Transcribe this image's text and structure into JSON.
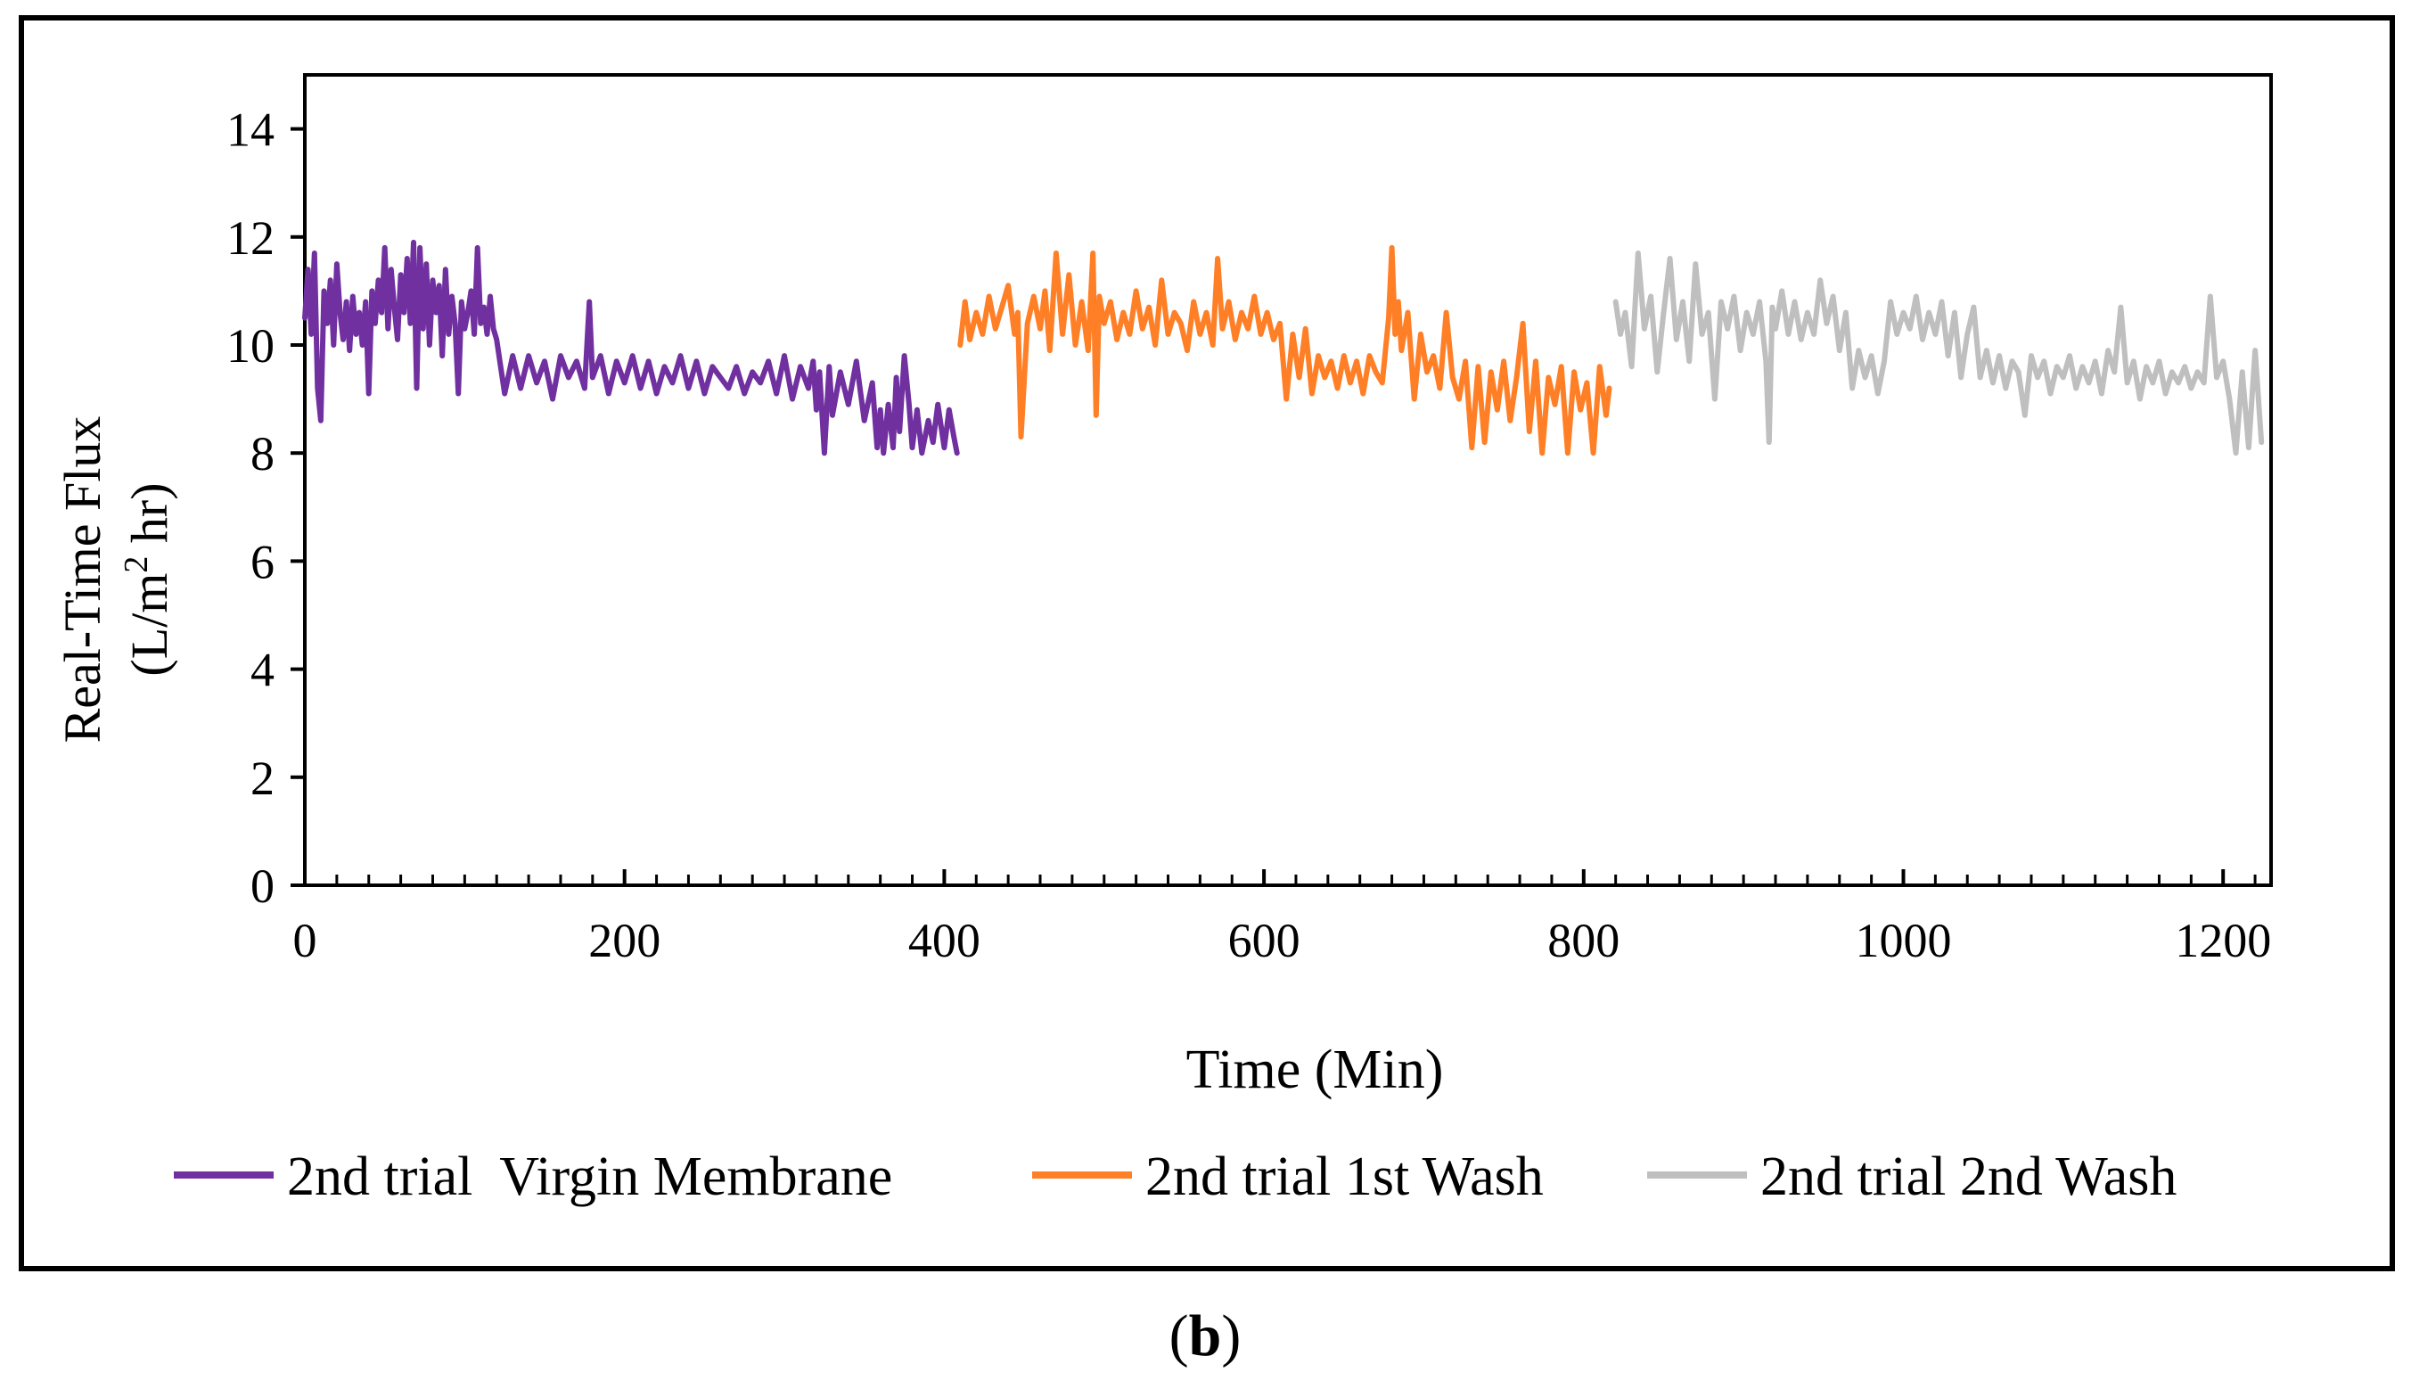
{
  "figure_label": "b",
  "colors": {
    "virgin": "#7030A0",
    "wash1": "#FF7F27",
    "wash2": "#BFBFBF",
    "axis": "#000000",
    "frame": "#000000"
  },
  "chart_data": {
    "type": "line",
    "title": "",
    "xlabel": "Time (Min)",
    "ylabel_line1": "Real-Time Flux",
    "ylabel_line2_prefix": "(L/m",
    "ylabel_line2_sup": "2",
    "ylabel_line2_suffix": " hr)",
    "xlim": [
      0,
      1230
    ],
    "ylim": [
      0,
      15
    ],
    "x_ticks": [
      0,
      200,
      400,
      600,
      800,
      1000,
      1200
    ],
    "y_ticks": [
      0,
      2,
      4,
      6,
      8,
      10,
      12,
      14
    ],
    "x_minor_step": 20,
    "grid": false,
    "legend_position": "bottom",
    "series": [
      {
        "name": "2nd trial  Virgin Membrane",
        "color_key": "virgin",
        "x": [
          0,
          2,
          4,
          6,
          8,
          10,
          12,
          14,
          16,
          18,
          20,
          22,
          24,
          26,
          28,
          30,
          32,
          34,
          36,
          38,
          40,
          42,
          44,
          46,
          48,
          50,
          52,
          54,
          56,
          58,
          60,
          62,
          64,
          66,
          68,
          70,
          72,
          74,
          76,
          78,
          80,
          82,
          84,
          86,
          88,
          90,
          92,
          94,
          96,
          98,
          100,
          102,
          104,
          106,
          108,
          110,
          112,
          114,
          116,
          118,
          120,
          125,
          130,
          135,
          140,
          145,
          150,
          155,
          160,
          165,
          170,
          175,
          178,
          180,
          185,
          190,
          195,
          200,
          205,
          210,
          215,
          220,
          225,
          230,
          235,
          240,
          245,
          250,
          255,
          260,
          265,
          270,
          275,
          280,
          285,
          290,
          295,
          300,
          305,
          310,
          315,
          318,
          320,
          322,
          325,
          328,
          330,
          335,
          340,
          345,
          350,
          355,
          358,
          360,
          362,
          365,
          368,
          370,
          372,
          375,
          378,
          380,
          383,
          386,
          390,
          393,
          396,
          400,
          403,
          406,
          408
        ],
        "y": [
          10.5,
          11.4,
          10.2,
          11.7,
          9.2,
          8.6,
          11.0,
          10.4,
          11.2,
          10.0,
          11.5,
          10.6,
          10.1,
          10.8,
          9.9,
          10.9,
          10.2,
          10.6,
          10.0,
          10.8,
          9.1,
          11.0,
          10.4,
          11.2,
          10.6,
          11.8,
          10.3,
          11.4,
          10.7,
          10.1,
          11.3,
          10.6,
          11.6,
          10.4,
          11.9,
          9.2,
          11.8,
          10.3,
          11.5,
          10.0,
          11.2,
          10.6,
          11.1,
          9.8,
          11.4,
          10.2,
          10.9,
          10.4,
          9.1,
          10.8,
          10.3,
          10.6,
          11.0,
          10.2,
          11.8,
          10.4,
          10.7,
          10.2,
          10.9,
          10.3,
          10.1,
          9.1,
          9.8,
          9.2,
          9.8,
          9.3,
          9.7,
          9.0,
          9.8,
          9.4,
          9.7,
          9.2,
          10.8,
          9.4,
          9.8,
          9.1,
          9.7,
          9.3,
          9.8,
          9.2,
          9.7,
          9.1,
          9.6,
          9.3,
          9.8,
          9.2,
          9.7,
          9.1,
          9.6,
          9.4,
          9.2,
          9.6,
          9.1,
          9.5,
          9.3,
          9.7,
          9.1,
          9.8,
          9.0,
          9.6,
          9.2,
          9.7,
          8.8,
          9.5,
          8.0,
          9.6,
          8.7,
          9.5,
          8.9,
          9.7,
          8.6,
          9.3,
          8.1,
          8.8,
          8.0,
          8.9,
          8.1,
          9.4,
          8.4,
          9.8,
          8.9,
          8.1,
          8.8,
          8.0,
          8.6,
          8.2,
          8.9,
          8.1,
          8.8,
          8.3,
          8.0
        ]
      },
      {
        "name": "2nd trial 1st Wash",
        "color_key": "wash1",
        "x": [
          410,
          413,
          416,
          420,
          424,
          428,
          432,
          436,
          440,
          444,
          446,
          448,
          452,
          456,
          460,
          463,
          466,
          470,
          474,
          478,
          482,
          486,
          490,
          493,
          495,
          497,
          500,
          504,
          508,
          512,
          516,
          520,
          524,
          528,
          532,
          536,
          540,
          544,
          548,
          552,
          556,
          560,
          564,
          568,
          571,
          574,
          578,
          582,
          586,
          590,
          594,
          598,
          602,
          606,
          610,
          614,
          618,
          622,
          626,
          630,
          634,
          638,
          642,
          646,
          650,
          654,
          658,
          662,
          666,
          670,
          674,
          678,
          680,
          682,
          684,
          686,
          690,
          694,
          698,
          702,
          706,
          710,
          714,
          718,
          722,
          726,
          730,
          734,
          738,
          742,
          746,
          750,
          754,
          758,
          762,
          766,
          770,
          774,
          778,
          782,
          786,
          790,
          794,
          798,
          802,
          806,
          810,
          814,
          816
        ],
        "y": [
          10.0,
          10.8,
          10.1,
          10.6,
          10.2,
          10.9,
          10.3,
          10.7,
          11.1,
          10.2,
          10.6,
          8.3,
          10.4,
          10.9,
          10.3,
          11.0,
          9.9,
          11.7,
          10.2,
          11.3,
          10.0,
          10.8,
          9.9,
          11.7,
          8.7,
          10.9,
          10.4,
          10.8,
          10.1,
          10.6,
          10.2,
          11.0,
          10.3,
          10.7,
          10.0,
          11.2,
          10.2,
          10.6,
          10.4,
          9.9,
          10.8,
          10.2,
          10.6,
          10.0,
          11.6,
          10.3,
          10.8,
          10.1,
          10.6,
          10.3,
          10.9,
          10.2,
          10.6,
          10.1,
          10.4,
          9.0,
          10.2,
          9.4,
          10.3,
          9.1,
          9.8,
          9.4,
          9.7,
          9.2,
          9.8,
          9.3,
          9.7,
          9.1,
          9.8,
          9.5,
          9.3,
          10.5,
          11.8,
          10.2,
          10.8,
          9.9,
          10.6,
          9.0,
          10.2,
          9.5,
          9.8,
          9.2,
          10.6,
          9.4,
          9.0,
          9.7,
          8.1,
          9.6,
          8.2,
          9.5,
          8.8,
          9.7,
          8.6,
          9.4,
          10.4,
          8.4,
          9.7,
          8.0,
          9.4,
          8.9,
          9.6,
          8.0,
          9.5,
          8.8,
          9.3,
          8.0,
          9.6,
          8.7,
          9.2
        ]
      },
      {
        "name": "2nd trial 2nd Wash",
        "color_key": "wash2",
        "x": [
          820,
          823,
          826,
          830,
          834,
          838,
          842,
          846,
          850,
          854,
          858,
          862,
          866,
          870,
          874,
          878,
          882,
          886,
          890,
          894,
          898,
          902,
          906,
          910,
          914,
          916,
          918,
          920,
          924,
          928,
          932,
          936,
          940,
          944,
          948,
          952,
          956,
          960,
          964,
          968,
          972,
          976,
          980,
          984,
          988,
          992,
          996,
          1000,
          1004,
          1008,
          1012,
          1016,
          1020,
          1024,
          1028,
          1032,
          1036,
          1040,
          1044,
          1048,
          1052,
          1056,
          1060,
          1064,
          1068,
          1072,
          1076,
          1080,
          1084,
          1088,
          1092,
          1096,
          1100,
          1104,
          1108,
          1112,
          1116,
          1120,
          1124,
          1128,
          1132,
          1136,
          1140,
          1144,
          1148,
          1152,
          1156,
          1160,
          1164,
          1168,
          1172,
          1176,
          1180,
          1184,
          1188,
          1192,
          1196,
          1200,
          1204,
          1208,
          1212,
          1216,
          1220,
          1224
        ],
        "y": [
          10.8,
          10.2,
          10.6,
          9.6,
          11.7,
          10.3,
          10.9,
          9.5,
          10.6,
          11.6,
          10.1,
          10.8,
          9.7,
          11.5,
          10.2,
          10.6,
          9.0,
          10.8,
          10.3,
          10.9,
          9.9,
          10.6,
          10.2,
          10.8,
          9.7,
          8.2,
          10.7,
          10.3,
          11.0,
          10.2,
          10.8,
          10.1,
          10.6,
          10.2,
          11.2,
          10.4,
          10.9,
          9.9,
          10.6,
          9.2,
          9.9,
          9.4,
          9.8,
          9.1,
          9.7,
          10.8,
          10.2,
          10.6,
          10.3,
          10.9,
          10.1,
          10.6,
          10.2,
          10.8,
          9.8,
          10.6,
          9.4,
          10.2,
          10.7,
          9.4,
          9.9,
          9.3,
          9.8,
          9.2,
          9.7,
          9.5,
          8.7,
          9.8,
          9.4,
          9.7,
          9.1,
          9.6,
          9.4,
          9.8,
          9.2,
          9.6,
          9.3,
          9.7,
          9.1,
          9.9,
          9.5,
          10.7,
          9.3,
          9.7,
          9.0,
          9.6,
          9.3,
          9.7,
          9.1,
          9.5,
          9.3,
          9.6,
          9.2,
          9.5,
          9.3,
          10.9,
          9.4,
          9.7,
          9.0,
          8.0,
          9.5,
          8.1,
          9.9,
          8.2
        ]
      }
    ]
  }
}
